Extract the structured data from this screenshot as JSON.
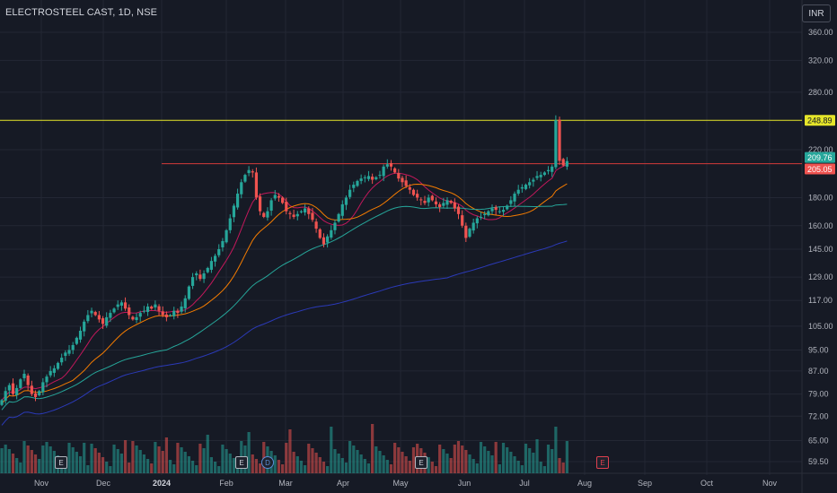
{
  "header": {
    "title": "ELECTROSTEEL CAST, 1D, NSE",
    "currency": "INR"
  },
  "colors": {
    "background": "#161a25",
    "up": "#26a69a",
    "down": "#ef5350",
    "yellow_line": "#e5e52a",
    "red_line": "#d43a3a",
    "ma_fast": "#c2185b",
    "ma_mid": "#f57c00",
    "ma_slow": "#26a69a",
    "ma_long": "#2b3ab8"
  },
  "chart_data": {
    "type": "candlestick",
    "y_axis": {
      "scale": "log",
      "ticks": [
        "360.00",
        "320.00",
        "280.00",
        "220.00",
        "180.00",
        "160.00",
        "145.00",
        "129.00",
        "117.00",
        "105.00",
        "95.00",
        "87.00",
        "79.00",
        "72.00",
        "65.00",
        "59.50"
      ]
    },
    "x_axis": {
      "ticks": [
        "Nov",
        "Dec",
        "2024",
        "Feb",
        "Mar",
        "Apr",
        "May",
        "Jun",
        "Jul",
        "Aug",
        "Sep",
        "Oct",
        "Nov"
      ]
    },
    "price_labels": [
      {
        "value": "248.89",
        "color": "#e5e52a",
        "text_color": "#131722"
      },
      {
        "value": "209.76",
        "color": "#26a69a",
        "text_color": "#ffffff"
      },
      {
        "value": "205.05",
        "color": "#ef5350",
        "text_color": "#ffffff"
      }
    ],
    "horizontal_lines": [
      {
        "value": 248.89,
        "color": "#e5e52a"
      },
      {
        "value": 207.5,
        "color": "#d43a3a"
      }
    ],
    "closes": [
      77,
      80,
      82,
      79,
      81,
      84,
      86,
      82,
      79,
      78,
      80,
      83,
      85,
      87,
      88,
      90,
      92,
      94,
      95,
      97,
      100,
      103,
      107,
      110,
      112,
      110,
      108,
      106,
      109,
      111,
      113,
      115,
      116,
      113,
      110,
      108,
      109,
      111,
      112,
      114,
      113,
      115,
      112,
      110,
      109,
      110,
      112,
      111,
      114,
      118,
      124,
      129,
      131,
      128,
      131,
      134,
      138,
      141,
      145,
      150,
      157,
      165,
      174,
      183,
      192,
      198,
      202,
      200,
      180,
      170,
      166,
      170,
      178,
      182,
      180,
      176,
      170,
      168,
      166,
      168,
      170,
      172,
      168,
      164,
      158,
      152,
      148,
      153,
      157,
      162,
      168,
      175,
      180,
      186,
      190,
      193,
      195,
      196,
      197,
      194,
      196,
      198,
      205,
      207,
      205,
      200,
      195,
      192,
      189,
      186,
      182,
      180,
      178,
      176,
      180,
      178,
      175,
      173,
      176,
      178,
      176,
      172,
      168,
      160,
      152,
      158,
      162,
      165,
      166,
      168,
      170,
      172,
      171,
      170,
      171,
      174,
      178,
      183,
      186,
      188,
      190,
      192,
      194,
      197,
      198,
      200,
      202,
      205,
      248.89,
      210,
      206,
      209.76
    ],
    "events": [
      {
        "label": "E",
        "style": "normal"
      },
      {
        "label": "E",
        "style": "normal"
      },
      {
        "label": "D",
        "style": "circle"
      },
      {
        "label": "E",
        "style": "normal"
      },
      {
        "label": "E",
        "style": "red"
      }
    ]
  }
}
